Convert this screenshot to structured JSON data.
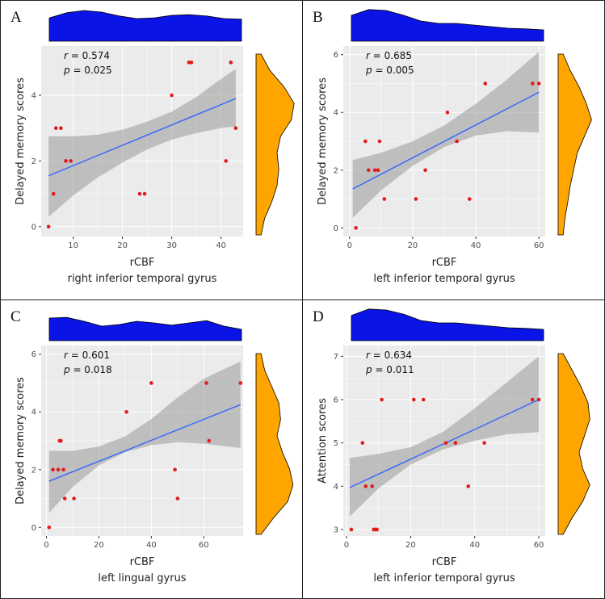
{
  "colors": {
    "panel_bg": "#ebebeb",
    "grid": "#ffffff",
    "points": "#e31a1c",
    "fit_line": "#3366ff",
    "ci_band": "#999999",
    "top_density": "#0a14e6",
    "side_density": "#ffa500"
  },
  "chart_data": [
    {
      "panel_label": "A",
      "type": "scatter",
      "xlabel": "rCBF",
      "subtitle": "right inferior temporal gyrus",
      "ylabel": "Delayed memory scores",
      "stat_r": "0.574",
      "stat_p": "0.025",
      "xlim": [
        3.5,
        44.5
      ],
      "ylim": [
        -0.3,
        5.5
      ],
      "xticks": [
        10,
        20,
        30,
        40
      ],
      "yticks": [
        0,
        2,
        4
      ],
      "points": [
        [
          5,
          0
        ],
        [
          6,
          1
        ],
        [
          6.5,
          3
        ],
        [
          7.5,
          3
        ],
        [
          8.5,
          2
        ],
        [
          9.5,
          2
        ],
        [
          23.5,
          1
        ],
        [
          24.5,
          1
        ],
        [
          30,
          4
        ],
        [
          33.5,
          5
        ],
        [
          34,
          5
        ],
        [
          41,
          2
        ],
        [
          42,
          5
        ],
        [
          43,
          3
        ]
      ],
      "fit": [
        [
          5,
          1.55
        ],
        [
          43,
          3.9
        ]
      ],
      "ci_lower": [
        [
          5,
          0.3
        ],
        [
          10,
          0.95
        ],
        [
          15,
          1.5
        ],
        [
          20,
          1.95
        ],
        [
          25,
          2.35
        ],
        [
          30,
          2.65
        ],
        [
          35,
          2.85
        ],
        [
          40,
          3.0
        ],
        [
          43,
          3.05
        ]
      ],
      "ci_upper": [
        [
          5,
          2.75
        ],
        [
          10,
          2.75
        ],
        [
          15,
          2.8
        ],
        [
          20,
          2.95
        ],
        [
          25,
          3.2
        ],
        [
          30,
          3.5
        ],
        [
          35,
          3.95
        ],
        [
          40,
          4.5
        ],
        [
          43,
          4.8
        ]
      ],
      "top_density": [
        0.72,
        0.88,
        0.95,
        0.9,
        0.78,
        0.7,
        0.72,
        0.8,
        0.82,
        0.78,
        0.7,
        0.68
      ],
      "side_density": [
        0.05,
        0.3,
        0.7,
        0.98,
        0.9,
        0.6,
        0.5,
        0.55,
        0.5,
        0.35,
        0.15,
        0.05
      ]
    },
    {
      "panel_label": "B",
      "type": "scatter",
      "xlabel": "rCBF",
      "subtitle": "left inferior temporal gyrus",
      "ylabel": "Delayed memory scores",
      "stat_r": "0.685",
      "stat_p": "0.005",
      "xlim": [
        -2,
        62
      ],
      "ylim": [
        -0.3,
        6.3
      ],
      "xticks": [
        0,
        20,
        40,
        60
      ],
      "yticks": [
        0,
        2,
        4,
        6
      ],
      "points": [
        [
          2,
          0
        ],
        [
          5,
          3
        ],
        [
          6,
          2
        ],
        [
          8,
          2
        ],
        [
          9,
          2
        ],
        [
          9.5,
          3
        ],
        [
          11,
          1
        ],
        [
          21,
          1
        ],
        [
          24,
          2
        ],
        [
          31,
          4
        ],
        [
          34,
          3
        ],
        [
          38,
          1
        ],
        [
          43,
          5
        ],
        [
          58,
          5
        ],
        [
          60,
          5
        ]
      ],
      "fit": [
        [
          1,
          1.35
        ],
        [
          60,
          4.7
        ]
      ],
      "ci_lower": [
        [
          1,
          0.35
        ],
        [
          10,
          1.3
        ],
        [
          20,
          2.15
        ],
        [
          30,
          2.8
        ],
        [
          40,
          3.2
        ],
        [
          50,
          3.35
        ],
        [
          60,
          3.3
        ]
      ],
      "ci_upper": [
        [
          1,
          2.35
        ],
        [
          10,
          2.6
        ],
        [
          20,
          3.0
        ],
        [
          30,
          3.55
        ],
        [
          40,
          4.3
        ],
        [
          50,
          5.15
        ],
        [
          60,
          6.1
        ]
      ],
      "top_density": [
        0.8,
        0.98,
        0.95,
        0.8,
        0.62,
        0.55,
        0.55,
        0.5,
        0.45,
        0.4,
        0.38,
        0.35
      ],
      "side_density": [
        0.05,
        0.25,
        0.5,
        0.7,
        0.85,
        0.65,
        0.45,
        0.35,
        0.25,
        0.18,
        0.1,
        0.05
      ]
    },
    {
      "panel_label": "C",
      "type": "scatter",
      "xlabel": "rCBF",
      "subtitle": "left lingual gyrus",
      "ylabel": "Delayed memory scores",
      "stat_r": "0.601",
      "stat_p": "0.018",
      "xlim": [
        -2,
        75
      ],
      "ylim": [
        -0.3,
        6.3
      ],
      "xticks": [
        0,
        20,
        40,
        60
      ],
      "yticks": [
        0,
        2,
        4,
        6
      ],
      "points": [
        [
          1,
          0
        ],
        [
          2.5,
          2
        ],
        [
          4.5,
          2
        ],
        [
          5,
          3
        ],
        [
          5.5,
          3
        ],
        [
          6.5,
          2
        ],
        [
          7,
          1
        ],
        [
          10.5,
          1
        ],
        [
          30.5,
          4
        ],
        [
          40,
          5
        ],
        [
          49,
          2
        ],
        [
          50,
          1
        ],
        [
          61,
          5
        ],
        [
          62,
          3
        ],
        [
          74,
          5
        ]
      ],
      "fit": [
        [
          1,
          1.6
        ],
        [
          74,
          4.25
        ]
      ],
      "ci_lower": [
        [
          1,
          0.5
        ],
        [
          10,
          1.4
        ],
        [
          20,
          2.15
        ],
        [
          30,
          2.6
        ],
        [
          40,
          2.85
        ],
        [
          50,
          2.95
        ],
        [
          60,
          2.9
        ],
        [
          74,
          2.75
        ]
      ],
      "ci_upper": [
        [
          1,
          2.65
        ],
        [
          10,
          2.65
        ],
        [
          20,
          2.8
        ],
        [
          30,
          3.15
        ],
        [
          40,
          3.75
        ],
        [
          50,
          4.5
        ],
        [
          60,
          5.15
        ],
        [
          74,
          5.75
        ]
      ],
      "top_density": [
        0.7,
        0.72,
        0.6,
        0.45,
        0.5,
        0.6,
        0.55,
        0.48,
        0.55,
        0.62,
        0.45,
        0.35
      ],
      "side_density": [
        0.05,
        0.15,
        0.35,
        0.55,
        0.6,
        0.5,
        0.65,
        0.85,
        0.95,
        0.8,
        0.4,
        0.05
      ]
    },
    {
      "panel_label": "D",
      "type": "scatter",
      "xlabel": "rCBF",
      "subtitle": "left inferior temporal gyrus",
      "ylabel": "Attention scores",
      "stat_r": "0.634",
      "stat_p": "0.011",
      "xlim": [
        -1,
        62
      ],
      "ylim": [
        2.85,
        7.25
      ],
      "xticks": [
        0,
        20,
        40,
        60
      ],
      "yticks": [
        3,
        4,
        5,
        6,
        7
      ],
      "points": [
        [
          1.5,
          3
        ],
        [
          5,
          5
        ],
        [
          6,
          4
        ],
        [
          8,
          4
        ],
        [
          8.5,
          3
        ],
        [
          9,
          3
        ],
        [
          9.5,
          3
        ],
        [
          11,
          6
        ],
        [
          21,
          6
        ],
        [
          24,
          6
        ],
        [
          31,
          5
        ],
        [
          34,
          5
        ],
        [
          38,
          4
        ],
        [
          43,
          5
        ],
        [
          58,
          6
        ],
        [
          60,
          6
        ]
      ],
      "fit": [
        [
          1,
          3.97
        ],
        [
          60,
          6.0
        ]
      ],
      "ci_lower": [
        [
          1,
          3.3
        ],
        [
          10,
          3.95
        ],
        [
          20,
          4.5
        ],
        [
          30,
          4.85
        ],
        [
          40,
          5.05
        ],
        [
          50,
          5.2
        ],
        [
          60,
          5.25
        ]
      ],
      "ci_upper": [
        [
          1,
          4.65
        ],
        [
          10,
          4.75
        ],
        [
          20,
          4.9
        ],
        [
          30,
          5.25
        ],
        [
          40,
          5.8
        ],
        [
          50,
          6.4
        ],
        [
          60,
          7.0
        ]
      ],
      "top_density": [
        0.78,
        0.98,
        0.95,
        0.82,
        0.62,
        0.55,
        0.55,
        0.5,
        0.45,
        0.4,
        0.38,
        0.35
      ],
      "side_density": [
        0.05,
        0.3,
        0.55,
        0.75,
        0.8,
        0.65,
        0.5,
        0.6,
        0.8,
        0.6,
        0.3,
        0.05
      ]
    }
  ]
}
